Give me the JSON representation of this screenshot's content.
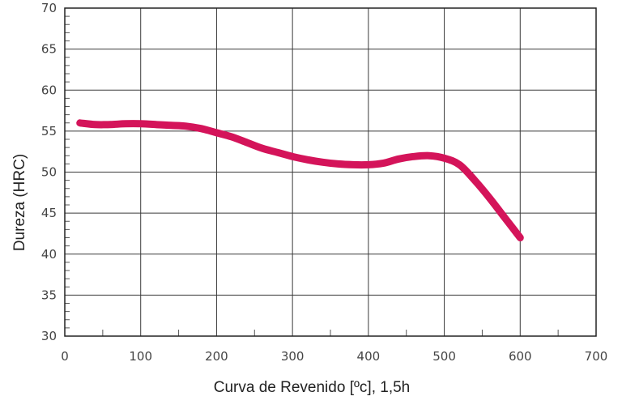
{
  "chart_data": {
    "type": "line",
    "xlabel": "Curva de Revenido [ºc], 1,5h",
    "ylabel": "Dureza (HRC)",
    "xlim": [
      0,
      700
    ],
    "ylim": [
      30,
      70
    ],
    "x_ticks": [
      "0",
      "100",
      "200",
      "300",
      "400",
      "500",
      "600",
      "700"
    ],
    "y_ticks": [
      "30",
      "35",
      "40",
      "45",
      "50",
      "55",
      "60",
      "65",
      "70"
    ],
    "grid": true,
    "line_color": "#d4145a",
    "series": [
      {
        "x": [
          20,
          40,
          60,
          80,
          100,
          120,
          140,
          160,
          180,
          200,
          220,
          240,
          260,
          280,
          300,
          320,
          340,
          360,
          380,
          400,
          420,
          440,
          460,
          480,
          500,
          520,
          540,
          560,
          580,
          600
        ],
        "values": [
          56.0,
          55.8,
          55.8,
          55.9,
          55.9,
          55.8,
          55.7,
          55.6,
          55.3,
          54.8,
          54.3,
          53.6,
          52.9,
          52.4,
          51.9,
          51.5,
          51.2,
          51.0,
          50.9,
          50.9,
          51.1,
          51.6,
          51.9,
          52.0,
          51.7,
          50.9,
          49.0,
          46.8,
          44.4,
          42.0
        ]
      }
    ]
  }
}
